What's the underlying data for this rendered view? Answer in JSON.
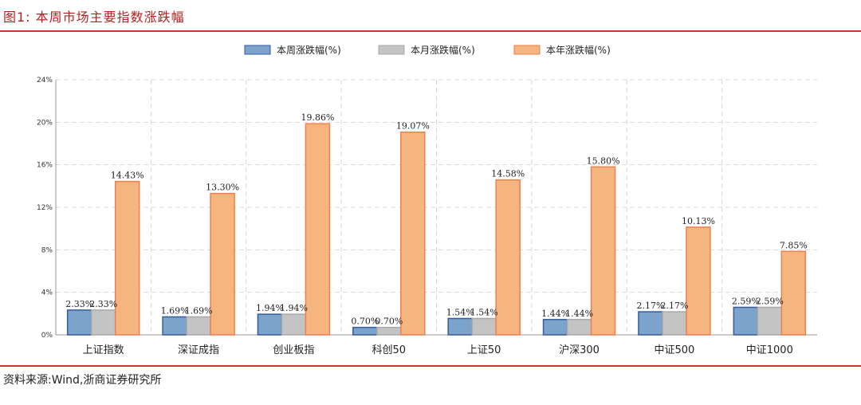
{
  "figure": {
    "title": "图1:   本周市场主要指数涨跌幅",
    "source": "资料来源:Wind,浙商证券研究所"
  },
  "colors": {
    "rule": "#c0392b",
    "title": "#b22222",
    "grid": "#d9d9d9"
  },
  "chart_data": {
    "type": "bar",
    "title": "",
    "xlabel": "",
    "ylabel": "",
    "ylim": [
      0,
      24
    ],
    "y_ticks": [
      "0%",
      "4%",
      "8%",
      "12%",
      "16%",
      "20%",
      "24%"
    ],
    "y_tick_values": [
      0,
      4,
      8,
      12,
      16,
      20,
      24
    ],
    "grid": true,
    "legend_position": "top-center",
    "categories": [
      "上证指数",
      "深证成指",
      "创业板指",
      "科创50",
      "上证50",
      "沪深300",
      "中证500",
      "中证1000"
    ],
    "series": [
      {
        "name": "本周涨跌幅(%)",
        "color": "#7ba3cc",
        "edge": "#3a5a9a",
        "values": [
          2.33,
          1.69,
          1.94,
          0.7,
          1.54,
          1.44,
          2.17,
          2.59
        ],
        "labels": [
          "2.33%",
          "1.69%",
          "1.94%",
          "0.70%",
          "1.54%",
          "1.44%",
          "2.17%",
          "2.59%"
        ]
      },
      {
        "name": "本月涨跌幅(%)",
        "color": "#c4c4c4",
        "edge": "#a8a8a8",
        "values": [
          2.33,
          1.69,
          1.94,
          0.7,
          1.54,
          1.44,
          2.17,
          2.59
        ],
        "labels": [
          "2.33%",
          "1.69%",
          "1.94%",
          "0.70%",
          "1.54%",
          "1.44%",
          "2.17%",
          "2.59%"
        ]
      },
      {
        "name": "本年涨跌幅(%)",
        "color": "#f5b57f",
        "edge": "#ef7f4e",
        "values": [
          14.43,
          13.3,
          19.86,
          19.07,
          14.58,
          15.8,
          10.13,
          7.85
        ],
        "labels": [
          "14.43%",
          "13.30%",
          "19.86%",
          "19.07%",
          "14.58%",
          "15.80%",
          "10.13%",
          "7.85%"
        ]
      }
    ]
  }
}
